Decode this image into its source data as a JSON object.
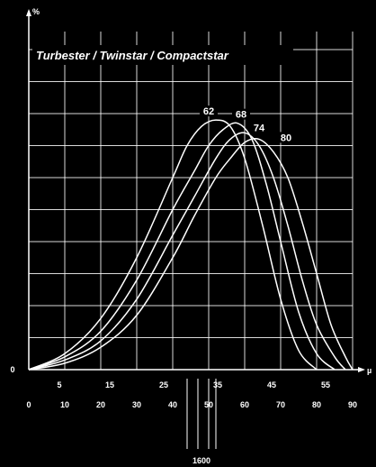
{
  "chart_data": {
    "type": "line",
    "title": "Turbester / Twinstar / Compactstar",
    "ylabel": "%",
    "xlabel": "µ",
    "xlim": [
      0,
      90
    ],
    "ylim": [
      0,
      100
    ],
    "y_ticks": [
      {
        "value": 0,
        "label": "0"
      }
    ],
    "x_ticks_upper": [
      {
        "value": 5,
        "label": "5"
      },
      {
        "value": 15,
        "label": "15"
      },
      {
        "value": 25,
        "label": "25"
      },
      {
        "value": 35,
        "label": "35"
      },
      {
        "value": 45,
        "label": "45"
      },
      {
        "value": 55,
        "label": "55"
      }
    ],
    "x_ticks_lower": [
      {
        "value": 0,
        "label": "0"
      },
      {
        "value": 10,
        "label": "10"
      },
      {
        "value": 20,
        "label": "20"
      },
      {
        "value": 30,
        "label": "30"
      },
      {
        "value": 40,
        "label": "40"
      },
      {
        "value": 50,
        "label": "50"
      },
      {
        "value": 60,
        "label": "60"
      },
      {
        "value": 70,
        "label": "70"
      },
      {
        "value": 80,
        "label": "80"
      },
      {
        "value": 90,
        "label": "90"
      }
    ],
    "grid": true,
    "series": [
      {
        "name": "62",
        "x": [
          0,
          10,
          20,
          30,
          40,
          44,
          48,
          52,
          56,
          60,
          65,
          70,
          75,
          80
        ],
        "y": [
          0,
          5,
          16,
          35,
          60,
          70,
          76,
          78,
          76,
          66,
          45,
          22,
          6,
          0
        ]
      },
      {
        "name": "68",
        "x": [
          0,
          10,
          20,
          30,
          40,
          46,
          50,
          54,
          58,
          62,
          66,
          70,
          75,
          80,
          85
        ],
        "y": [
          0,
          4,
          12,
          28,
          50,
          62,
          70,
          75,
          77,
          72,
          58,
          40,
          18,
          5,
          0
        ]
      },
      {
        "name": "74",
        "x": [
          0,
          10,
          20,
          30,
          40,
          46,
          52,
          56,
          60,
          64,
          68,
          72,
          76,
          80,
          85,
          88
        ],
        "y": [
          0,
          3,
          9,
          22,
          42,
          54,
          66,
          72,
          74,
          70,
          60,
          45,
          28,
          14,
          4,
          0
        ]
      },
      {
        "name": "80",
        "x": [
          0,
          10,
          20,
          30,
          40,
          46,
          52,
          56,
          60,
          64,
          68,
          72,
          76,
          80,
          84,
          88,
          90
        ],
        "y": [
          0,
          2,
          7,
          17,
          35,
          48,
          60,
          66,
          71,
          72,
          68,
          60,
          46,
          30,
          14,
          4,
          0
        ]
      }
    ],
    "markers_below_axis": {
      "label": "1600",
      "x": [
        44,
        47,
        50,
        52
      ]
    }
  }
}
